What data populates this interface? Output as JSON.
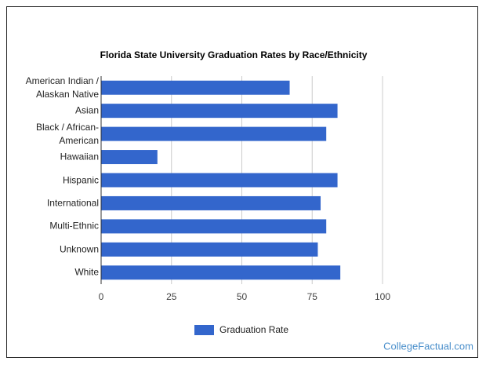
{
  "chart_data": {
    "type": "bar",
    "orientation": "horizontal",
    "title": "Florida State University Graduation Rates by Race/Ethnicity",
    "categories": [
      "American Indian / Alaskan Native",
      "Asian",
      "Black / African-American",
      "Hawaiian",
      "Hispanic",
      "International",
      "Multi-Ethnic",
      "Unknown",
      "White"
    ],
    "series": [
      {
        "name": "Graduation Rate",
        "color": "#3366cc",
        "values": [
          67,
          84,
          80,
          20,
          84,
          78,
          80,
          77,
          85
        ]
      }
    ],
    "xlim": [
      0,
      100
    ],
    "xticks": [
      0,
      25,
      50,
      75,
      100
    ],
    "grid": true,
    "legend": "bottom",
    "source": "CollegeFactual.com"
  }
}
